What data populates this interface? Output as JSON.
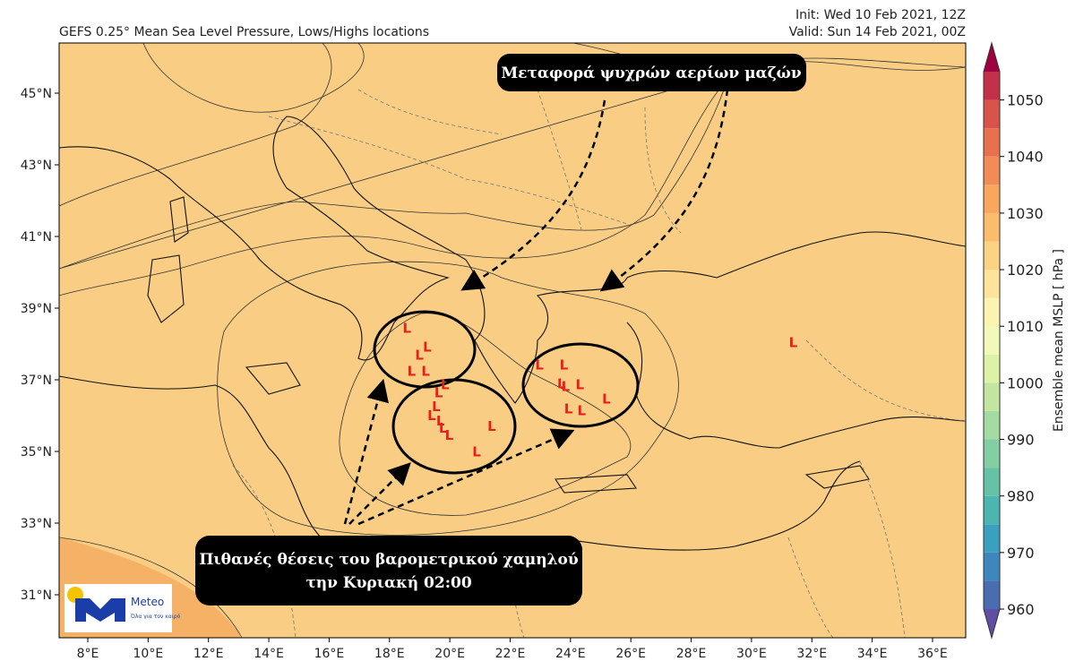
{
  "header": {
    "title": "GEFS 0.25° Mean Sea Level Pressure, Lows/Highs locations",
    "init": "Init: Wed 10 Feb 2021, 12Z",
    "valid": "Valid: Sun 14 Feb 2021, 00Z"
  },
  "map": {
    "lonlim": [
      7.05,
      37.1
    ],
    "latlim": [
      29.8,
      46.4
    ],
    "lon_ticks": [
      {
        "value": 8,
        "label": "8°E"
      },
      {
        "value": 10,
        "label": "10°E"
      },
      {
        "value": 12,
        "label": "12°E"
      },
      {
        "value": 14,
        "label": "14°E"
      },
      {
        "value": 16,
        "label": "16°E"
      },
      {
        "value": 18,
        "label": "18°E"
      },
      {
        "value": 20,
        "label": "20°E"
      },
      {
        "value": 22,
        "label": "22°E"
      },
      {
        "value": 24,
        "label": "24°E"
      },
      {
        "value": 26,
        "label": "26°E"
      },
      {
        "value": 28,
        "label": "28°E"
      },
      {
        "value": 30,
        "label": "30°E"
      },
      {
        "value": 32,
        "label": "32°E"
      },
      {
        "value": 34,
        "label": "34°E"
      },
      {
        "value": 36,
        "label": "36°E"
      }
    ],
    "lat_ticks": [
      {
        "value": 31,
        "label": "31°N"
      },
      {
        "value": 33,
        "label": "33°N"
      },
      {
        "value": 35,
        "label": "35°N"
      },
      {
        "value": 37,
        "label": "37°N"
      },
      {
        "value": 39,
        "label": "39°N"
      },
      {
        "value": 41,
        "label": "41°N"
      },
      {
        "value": 43,
        "label": "43°N"
      },
      {
        "value": 45,
        "label": "45°N"
      }
    ],
    "low_label": "L",
    "low_color": "#e8201a",
    "lows": [
      {
        "lon": 18.58,
        "lat": 38.46
      },
      {
        "lon": 19.25,
        "lat": 37.94
      },
      {
        "lon": 18.99,
        "lat": 37.71
      },
      {
        "lon": 18.73,
        "lat": 37.26
      },
      {
        "lon": 19.2,
        "lat": 37.26
      },
      {
        "lon": 19.63,
        "lat": 36.66
      },
      {
        "lon": 19.84,
        "lat": 36.89
      },
      {
        "lon": 19.55,
        "lat": 36.28
      },
      {
        "lon": 19.4,
        "lat": 36.03
      },
      {
        "lon": 19.69,
        "lat": 35.88
      },
      {
        "lon": 19.78,
        "lat": 35.68
      },
      {
        "lon": 19.98,
        "lat": 35.48
      },
      {
        "lon": 20.89,
        "lat": 35.01
      },
      {
        "lon": 21.39,
        "lat": 35.73
      },
      {
        "lon": 22.97,
        "lat": 37.44
      },
      {
        "lon": 23.78,
        "lat": 37.44
      },
      {
        "lon": 23.7,
        "lat": 36.91
      },
      {
        "lon": 23.84,
        "lat": 36.84
      },
      {
        "lon": 24.31,
        "lat": 36.89
      },
      {
        "lon": 23.93,
        "lat": 36.21
      },
      {
        "lon": 24.37,
        "lat": 36.16
      },
      {
        "lon": 25.19,
        "lat": 36.49
      },
      {
        "lon": 31.38,
        "lat": 38.06
      }
    ]
  },
  "colorbar": {
    "label": "Ensemble mean MSLP [ hPa ]",
    "lim": [
      960,
      1055
    ],
    "ticks": [
      960,
      970,
      980,
      990,
      1000,
      1010,
      1020,
      1030,
      1040,
      1050
    ],
    "colors": [
      "#4a6db2",
      "#3d87bd",
      "#3aa0bf",
      "#4bb5b0",
      "#66c2a5",
      "#84cea4",
      "#a4dba3",
      "#c2e6a0",
      "#def2a5",
      "#f1f8b8",
      "#fdf3b0",
      "#fde49a",
      "#fcd283",
      "#fbbd6c",
      "#f8a75d",
      "#f28b55",
      "#e8704d",
      "#d9534a",
      "#c33148"
    ],
    "under_color": "#5e4fa2",
    "over_color": "#9e0142"
  },
  "annotations": [
    "Μεταφορά ψυχρών αερίων μαζών",
    "Πιθανές θέσεις του βαρομετρικού χαμηλού",
    "την Κυριακή 02:00"
  ],
  "logo": {
    "name": "Meteo",
    "tagline": "Όλα για τον καιρό"
  }
}
